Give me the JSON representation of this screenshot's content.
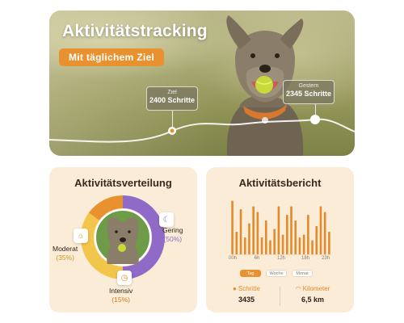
{
  "hero": {
    "title": "Aktivitätstracking",
    "pill": "Mit täglichem Ziel",
    "goal_tag": {
      "caption": "Ziel",
      "value": "2400 Schritte"
    },
    "yesterday_tag": {
      "caption": "Gestern",
      "value": "2345 Schritte"
    }
  },
  "distribution": {
    "title": "Aktivitätsverteilung",
    "segments": [
      {
        "name": "Gering",
        "percent": "(50%)",
        "value": 50,
        "color": "#8f6bc7",
        "icon": "moon-icon"
      },
      {
        "name": "Moderat",
        "percent": "(35%)",
        "value": 35,
        "color": "#f2c64b",
        "icon": "house-icon"
      },
      {
        "name": "Intensiv",
        "percent": "(15%)",
        "value": 15,
        "color": "#e9912f",
        "icon": "run-icon"
      }
    ]
  },
  "report": {
    "title": "Aktivitätsbericht",
    "x_ticks": [
      "00h",
      "6h",
      "12h",
      "18h",
      "23h"
    ],
    "tabs": [
      "Tag",
      "Woche",
      "Monat"
    ],
    "active_tab": "Tag",
    "stats": {
      "steps_label": "Schritte",
      "steps_value": "3435",
      "km_label": "Kilometer",
      "km_value": "6,5 km"
    }
  },
  "chart_data": {
    "type": "bar",
    "categories": [
      "0h",
      "1h",
      "2h",
      "3h",
      "4h",
      "5h",
      "6h",
      "7h",
      "8h",
      "9h",
      "10h",
      "11h",
      "12h",
      "13h",
      "14h",
      "15h",
      "16h",
      "17h",
      "18h",
      "19h",
      "20h",
      "21h",
      "22h",
      "23h"
    ],
    "values": [
      95,
      40,
      80,
      30,
      55,
      85,
      75,
      30,
      60,
      25,
      45,
      85,
      35,
      70,
      85,
      60,
      30,
      35,
      70,
      25,
      50,
      85,
      75,
      40
    ],
    "ylim": [
      0,
      100
    ],
    "color": "#e38a2a"
  }
}
